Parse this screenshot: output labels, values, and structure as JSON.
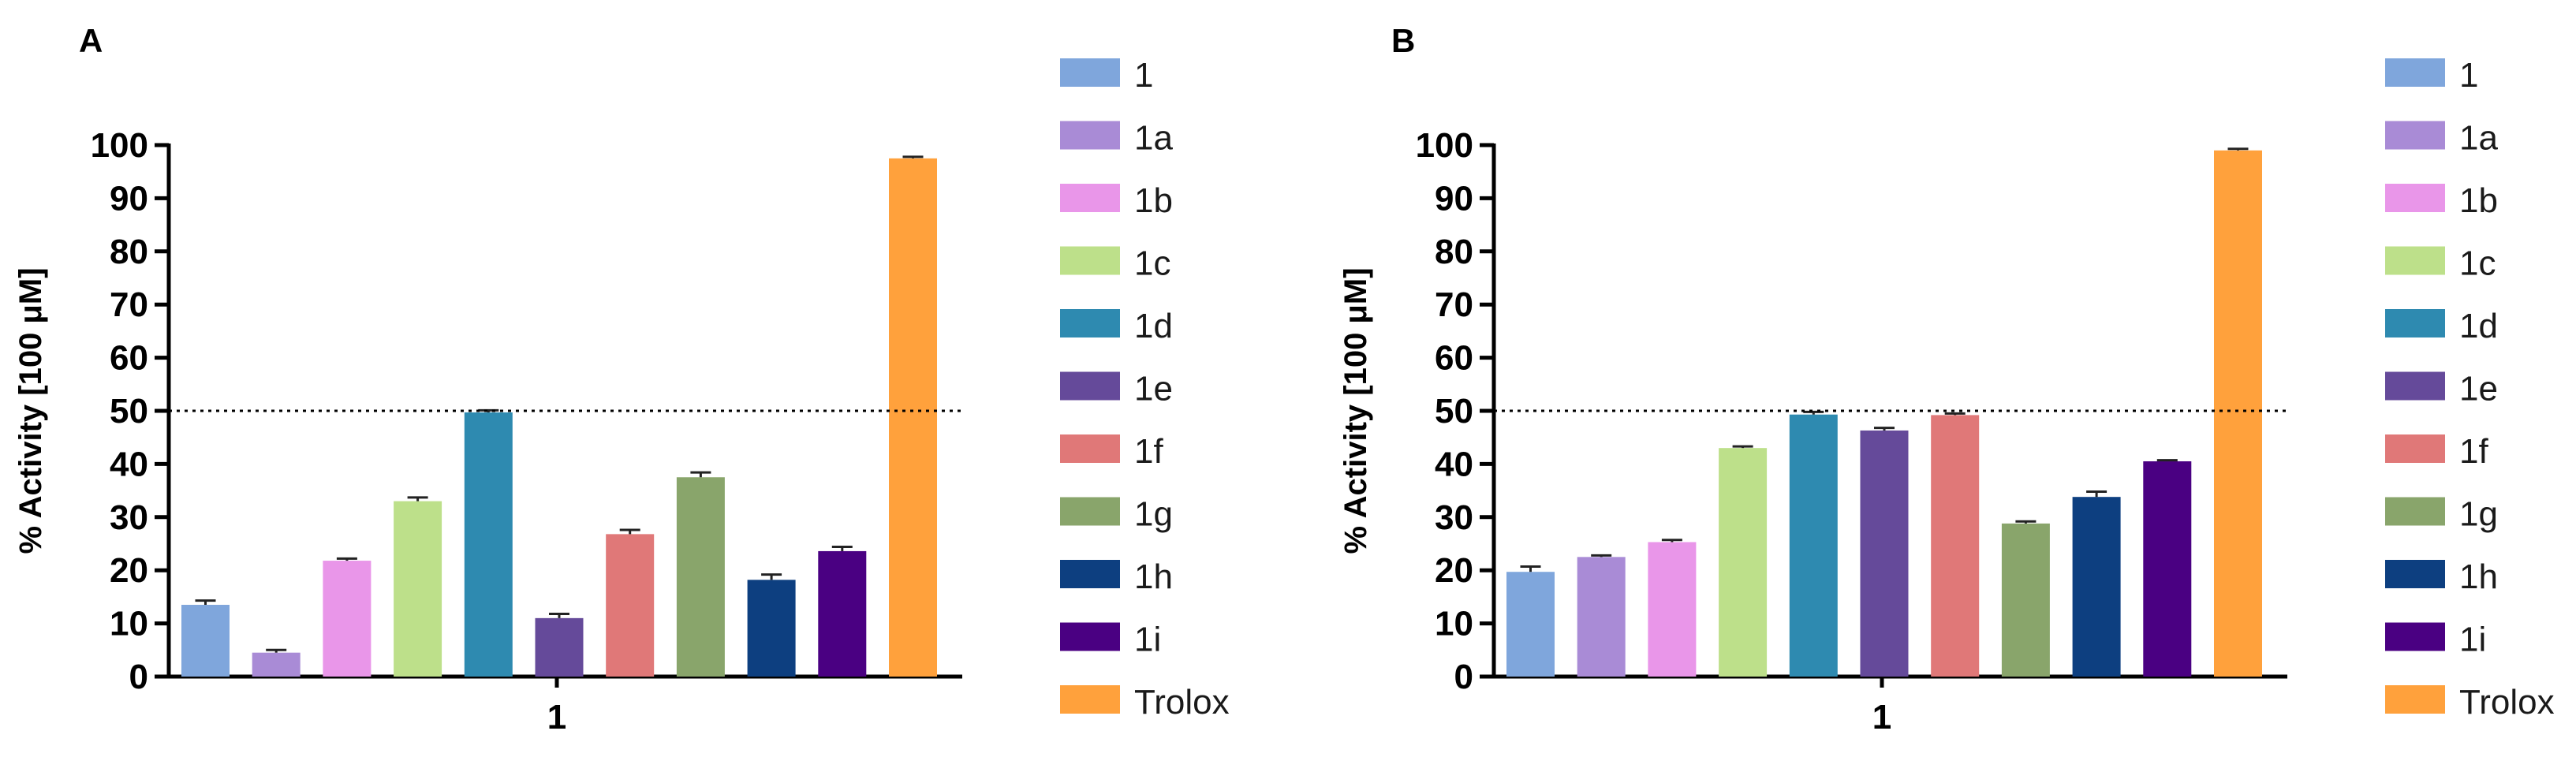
{
  "chart_data": [
    {
      "type": "bar",
      "panel": "A",
      "ylabel": "% Activity [100 μM]",
      "xlabel": "1",
      "ylim": [
        0,
        100
      ],
      "yticks": [
        "0",
        "10",
        "20",
        "30",
        "40",
        "50",
        "60",
        "70",
        "80",
        "90",
        "100"
      ],
      "reference_line": 50,
      "categories": [
        "1"
      ],
      "series": [
        {
          "name": "1",
          "values": [
            13.5
          ],
          "error": [
            0.8
          ]
        },
        {
          "name": "1a",
          "values": [
            4.5
          ],
          "error": [
            0.5
          ]
        },
        {
          "name": "1b",
          "values": [
            21.8
          ],
          "error": [
            0.4
          ]
        },
        {
          "name": "1c",
          "values": [
            33.0
          ],
          "error": [
            0.7
          ]
        },
        {
          "name": "1d",
          "values": [
            49.7
          ],
          "error": [
            0.4
          ]
        },
        {
          "name": "1e",
          "values": [
            11.0
          ],
          "error": [
            0.8
          ]
        },
        {
          "name": "1f",
          "values": [
            26.8
          ],
          "error": [
            0.8
          ]
        },
        {
          "name": "1g",
          "values": [
            37.5
          ],
          "error": [
            0.9
          ]
        },
        {
          "name": "1h",
          "values": [
            18.2
          ],
          "error": [
            1.0
          ]
        },
        {
          "name": "1i",
          "values": [
            23.6
          ],
          "error": [
            0.8
          ]
        },
        {
          "name": "Trolox",
          "values": [
            97.5
          ],
          "error": [
            0.3
          ]
        }
      ]
    },
    {
      "type": "bar",
      "panel": "B",
      "ylabel": "% Activity [100 μM]",
      "xlabel": "1",
      "ylim": [
        0,
        100
      ],
      "yticks": [
        "0",
        "10",
        "20",
        "30",
        "40",
        "50",
        "60",
        "70",
        "80",
        "90",
        "100"
      ],
      "reference_line": 50,
      "categories": [
        "1"
      ],
      "series": [
        {
          "name": "1",
          "values": [
            19.7
          ],
          "error": [
            1.0
          ]
        },
        {
          "name": "1a",
          "values": [
            22.5
          ],
          "error": [
            0.3
          ]
        },
        {
          "name": "1b",
          "values": [
            25.3
          ],
          "error": [
            0.4
          ]
        },
        {
          "name": "1c",
          "values": [
            43.0
          ],
          "error": [
            0.3
          ]
        },
        {
          "name": "1d",
          "values": [
            49.3
          ],
          "error": [
            0.5
          ]
        },
        {
          "name": "1e",
          "values": [
            46.3
          ],
          "error": [
            0.5
          ]
        },
        {
          "name": "1f",
          "values": [
            49.2
          ],
          "error": [
            0.3
          ]
        },
        {
          "name": "1g",
          "values": [
            28.8
          ],
          "error": [
            0.4
          ]
        },
        {
          "name": "1h",
          "values": [
            33.8
          ],
          "error": [
            1.0
          ]
        },
        {
          "name": "1i",
          "values": [
            40.5
          ],
          "error": [
            0.2
          ]
        },
        {
          "name": "Trolox",
          "values": [
            99.0
          ],
          "error": [
            0.3
          ]
        }
      ]
    }
  ],
  "legend": [
    {
      "label": "1",
      "color": "#7fa6dc"
    },
    {
      "label": "1a",
      "color": "#a98bd6"
    },
    {
      "label": "1b",
      "color": "#e996e9"
    },
    {
      "label": "1c",
      "color": "#bde08a"
    },
    {
      "label": "1d",
      "color": "#2e8ab0"
    },
    {
      "label": "1e",
      "color": "#654a9a"
    },
    {
      "label": "1f",
      "color": "#e07878"
    },
    {
      "label": "1g",
      "color": "#89a56b"
    },
    {
      "label": "1h",
      "color": "#0d3f80"
    },
    {
      "label": "1i",
      "color": "#4a0082"
    },
    {
      "label": "Trolox",
      "color": "#ffa13c"
    }
  ]
}
